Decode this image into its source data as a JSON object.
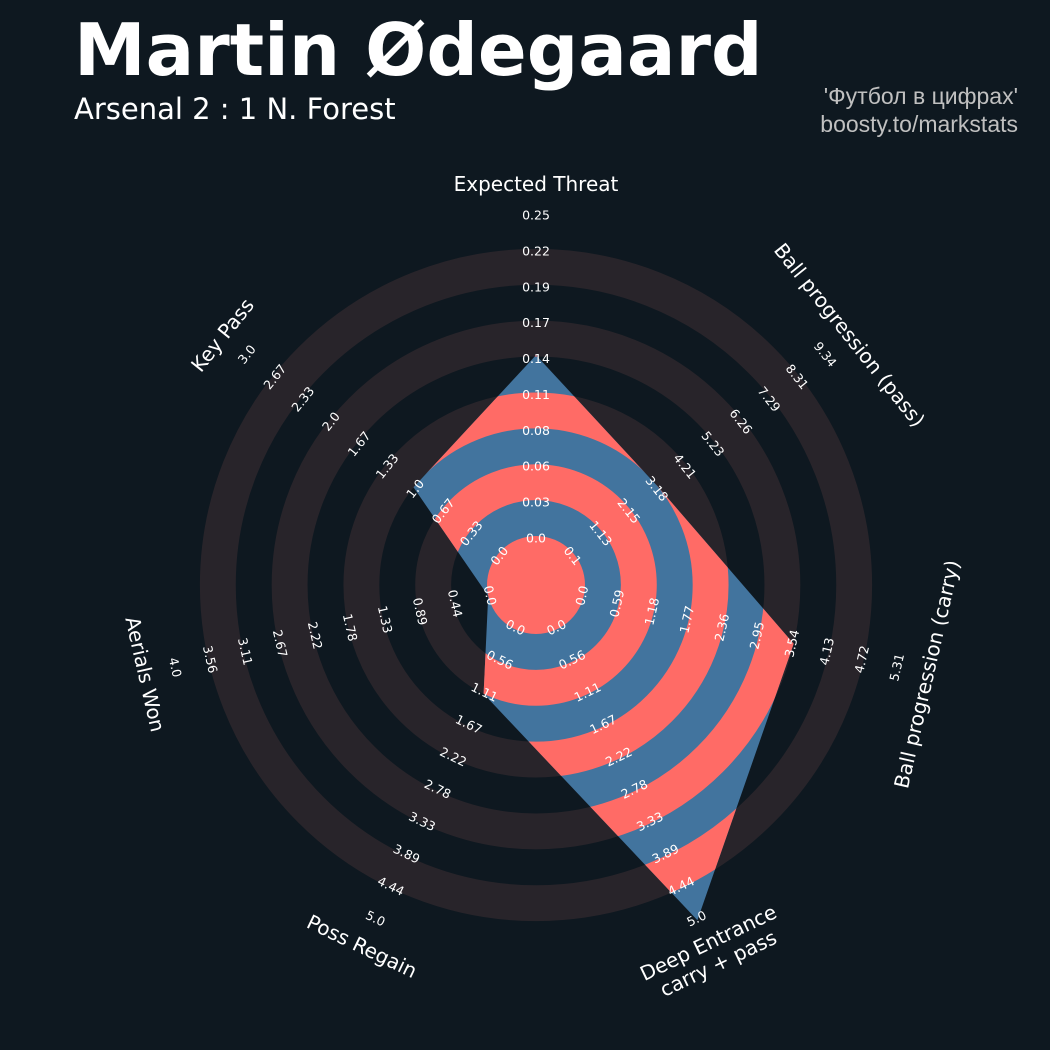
{
  "header": {
    "title": "Martin Ødegaard",
    "subtitle": "Arsenal 2 : 1 N. Forest",
    "credit_line1": "'Футбол в цифрах'",
    "credit_line2": "boosty.to/markstats"
  },
  "colors": {
    "background": "#0e1820",
    "ring_band": "#28242a",
    "value_blue": "#42749e",
    "value_red": "#ff6b66"
  },
  "chart_data": {
    "type": "radar",
    "params": [
      {
        "name": "Expected Threat",
        "value": 0.14,
        "min": 0.0,
        "max": 0.25,
        "ticks": [
          "0.0",
          "0.03",
          "0.06",
          "0.08",
          "0.11",
          "0.14",
          "0.17",
          "0.19",
          "0.22",
          "0.25"
        ]
      },
      {
        "name": "Ball progression (pass)",
        "value": 3.18,
        "min": 0.1,
        "max": 9.34,
        "ticks": [
          "0.1",
          "1.13",
          "2.15",
          "3.18",
          "4.21",
          "5.23",
          "6.26",
          "7.29",
          "8.31",
          "9.34"
        ]
      },
      {
        "name": "Ball progression (carry)",
        "value": 3.54,
        "min": 0.0,
        "max": 5.31,
        "ticks": [
          "0.0",
          "0.59",
          "1.18",
          "1.77",
          "2.36",
          "2.95",
          "3.54",
          "4.13",
          "4.72",
          "5.31"
        ]
      },
      {
        "name": "Deep Entrance\ncarry + pass",
        "value": 5.0,
        "min": 0.0,
        "max": 5.0,
        "ticks": [
          "0.0",
          "0.56",
          "1.11",
          "1.67",
          "2.22",
          "2.78",
          "3.33",
          "3.89",
          "4.44",
          "5.0"
        ]
      },
      {
        "name": "Poss Regain",
        "value": 1.11,
        "min": 0.0,
        "max": 5.0,
        "ticks": [
          "0.0",
          "0.56",
          "1.11",
          "1.67",
          "2.22",
          "2.78",
          "3.33",
          "3.89",
          "4.44",
          "5.0"
        ]
      },
      {
        "name": "Aerials Won",
        "value": 0.0,
        "min": 0.0,
        "max": 4.0,
        "ticks": [
          "0.0",
          "0.44",
          "0.89",
          "1.33",
          "1.78",
          "2.22",
          "2.67",
          "3.11",
          "3.56",
          "4.0"
        ]
      },
      {
        "name": "Key Pass",
        "value": 1.0,
        "min": 0.0,
        "max": 3.0,
        "ticks": [
          "0.0",
          "0.33",
          "0.67",
          "1.0",
          "1.33",
          "1.67",
          "2.0",
          "2.33",
          "2.67",
          "3.0"
        ]
      }
    ]
  }
}
